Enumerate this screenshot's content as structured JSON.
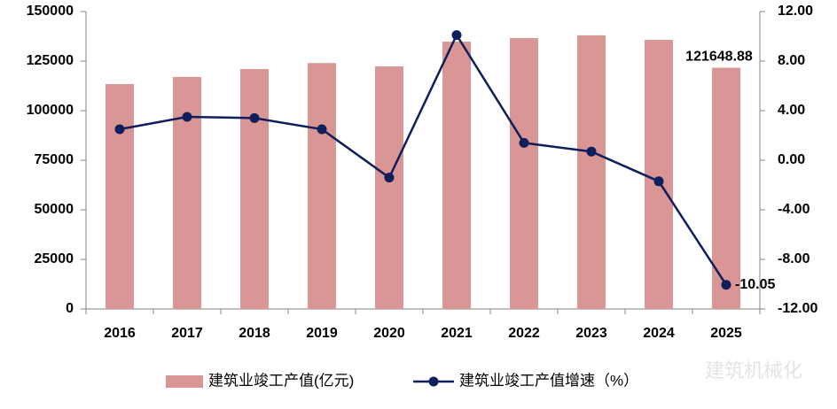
{
  "chart_data": {
    "type": "bar-line",
    "categories": [
      "2016",
      "2017",
      "2018",
      "2019",
      "2020",
      "2021",
      "2022",
      "2023",
      "2024",
      "2025"
    ],
    "series": [
      {
        "name": "建筑业竣工产值(亿元)",
        "type": "bar",
        "color": "#d99694",
        "values": [
          113400,
          117000,
          121000,
          124000,
          122300,
          134800,
          136600,
          138000,
          135700,
          121648.88
        ],
        "value_labels": [
          null,
          null,
          null,
          null,
          null,
          null,
          null,
          null,
          null,
          "121648.88"
        ]
      },
      {
        "name": "建筑业竣工产值增速（%）",
        "type": "line",
        "axis": "y2",
        "color": "#0e1f5b",
        "values": [
          2.5,
          3.5,
          3.4,
          2.5,
          -1.4,
          10.1,
          1.4,
          0.7,
          -1.7,
          -10.05
        ],
        "value_labels": [
          null,
          null,
          null,
          null,
          null,
          null,
          null,
          null,
          null,
          "-10.05"
        ]
      }
    ],
    "ylim": [
      0,
      150000
    ],
    "yticks": [
      0,
      25000,
      50000,
      75000,
      100000,
      125000,
      150000
    ],
    "y2lim": [
      -12,
      12
    ],
    "y2ticks": [
      {
        "value": -12,
        "label": "-12.00"
      },
      {
        "value": -8,
        "label": "-8.00"
      },
      {
        "value": -4,
        "label": "-4.00"
      },
      {
        "value": 0,
        "label": "0.00"
      },
      {
        "value": 4,
        "label": "4.00"
      },
      {
        "value": 8,
        "label": "8.00"
      },
      {
        "value": 12,
        "label": "12.00"
      }
    ],
    "grid": false,
    "legend": "bottom",
    "watermark": "建筑机械化"
  }
}
